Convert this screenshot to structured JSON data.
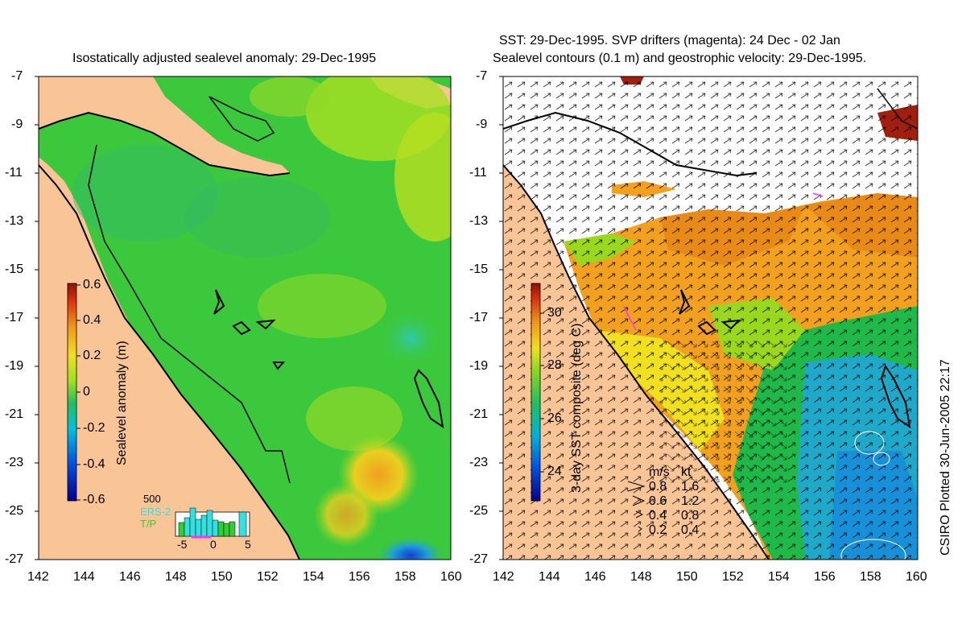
{
  "left_panel": {
    "title": "Isostatically adjusted sealevel anomaly: 29-Dec-1995",
    "colorbar": {
      "label": "Sealevel anomaly (m)",
      "ticks": [
        "0.6",
        "0.4",
        "0.2",
        "0",
        "-0.2",
        "-0.4",
        "-0.6"
      ],
      "range": [
        -0.6,
        0.6
      ]
    },
    "inset": {
      "y_max_label": "500",
      "legend": [
        {
          "label": "ERS-2",
          "color": "#33e0e0"
        },
        {
          "label": "T/P",
          "color": "#33cc33"
        }
      ],
      "x_ticks": [
        "-5",
        "0",
        "5"
      ]
    }
  },
  "right_panel": {
    "title_line1": "SST: 29-Dec-1995. SVP drifters (magenta): 24 Dec - 02 Jan",
    "title_line2": "Sealevel contours (0.1 m) and geostrophic velocity: 29-Dec-1995.",
    "colorbar": {
      "label": "3-day SST composite (deg C)",
      "ticks": [
        "30",
        "28",
        "26",
        "24"
      ],
      "range": [
        23,
        31.2
      ]
    },
    "speed_legend": {
      "header_ms": "m/s",
      "header_kt": "kt",
      "rows": [
        {
          "ms": "0.8",
          "kt": "1.6"
        },
        {
          "ms": "0.6",
          "kt": "1.2"
        },
        {
          "ms": "0.4",
          "kt": "0.8"
        },
        {
          "ms": "0.2",
          "kt": "0.4"
        }
      ]
    }
  },
  "axes": {
    "lat_ticks": [
      "-7",
      "-9",
      "-11",
      "-13",
      "-15",
      "-17",
      "-19",
      "-21",
      "-23",
      "-25",
      "-27"
    ],
    "lon_ticks": [
      "142",
      "144",
      "146",
      "148",
      "150",
      "152",
      "154",
      "156",
      "158",
      "160"
    ],
    "lat_range": [
      -27,
      -7
    ],
    "lon_range": [
      142,
      160
    ]
  },
  "credit": "CSIRO Plotted 30-Jun-2005 22:17",
  "colors": {
    "land": "#f9c597",
    "ocean_sla": "#3cc83c",
    "sst_warm": "#f2a020",
    "sst_cold": "#20a8c8"
  }
}
